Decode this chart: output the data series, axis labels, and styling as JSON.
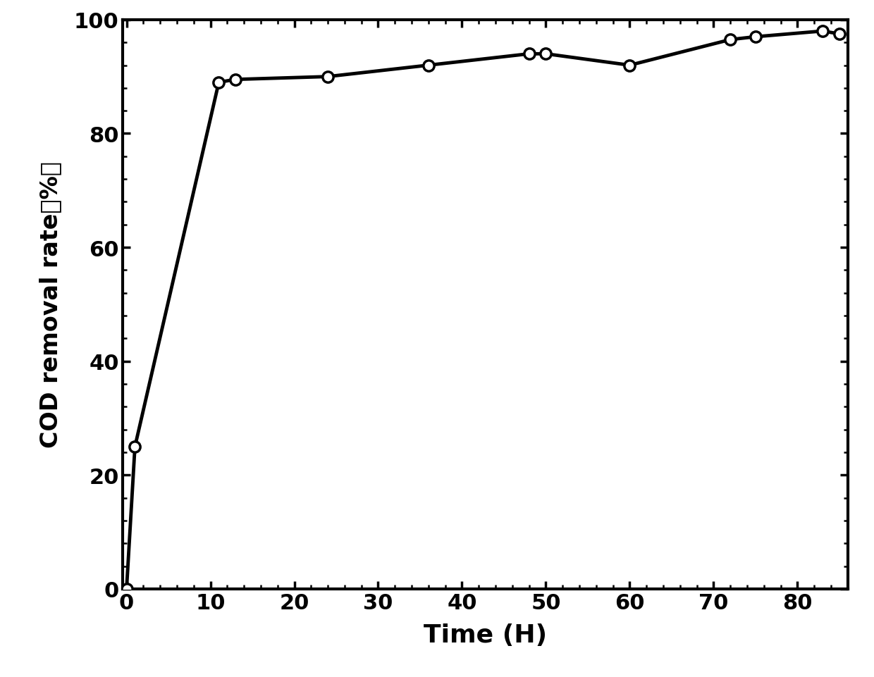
{
  "x": [
    0,
    1,
    11,
    13,
    24,
    36,
    48,
    50,
    60,
    72,
    75,
    83,
    85
  ],
  "y": [
    0,
    25,
    89,
    89.5,
    90,
    92,
    94,
    94,
    92,
    96.5,
    97,
    98,
    97.5
  ],
  "xlabel": "Time (H)",
  "ylabel": "COD removal rate（%）",
  "xlim": [
    -0.5,
    86
  ],
  "ylim": [
    0,
    100
  ],
  "xticks": [
    0,
    10,
    20,
    30,
    40,
    50,
    60,
    70,
    80
  ],
  "yticks": [
    0,
    20,
    40,
    60,
    80,
    100
  ],
  "line_color": "#000000",
  "line_width": 3.5,
  "marker": "o",
  "marker_size": 11,
  "marker_facecolor": "#ffffff",
  "marker_edgecolor": "#000000",
  "marker_edgewidth": 2.5,
  "xlabel_fontsize": 26,
  "ylabel_fontsize": 24,
  "tick_fontsize": 22,
  "tick_fontweight": "bold",
  "label_fontweight": "bold",
  "background_color": "#ffffff",
  "minor_ticks": true,
  "spine_linewidth": 3.0
}
